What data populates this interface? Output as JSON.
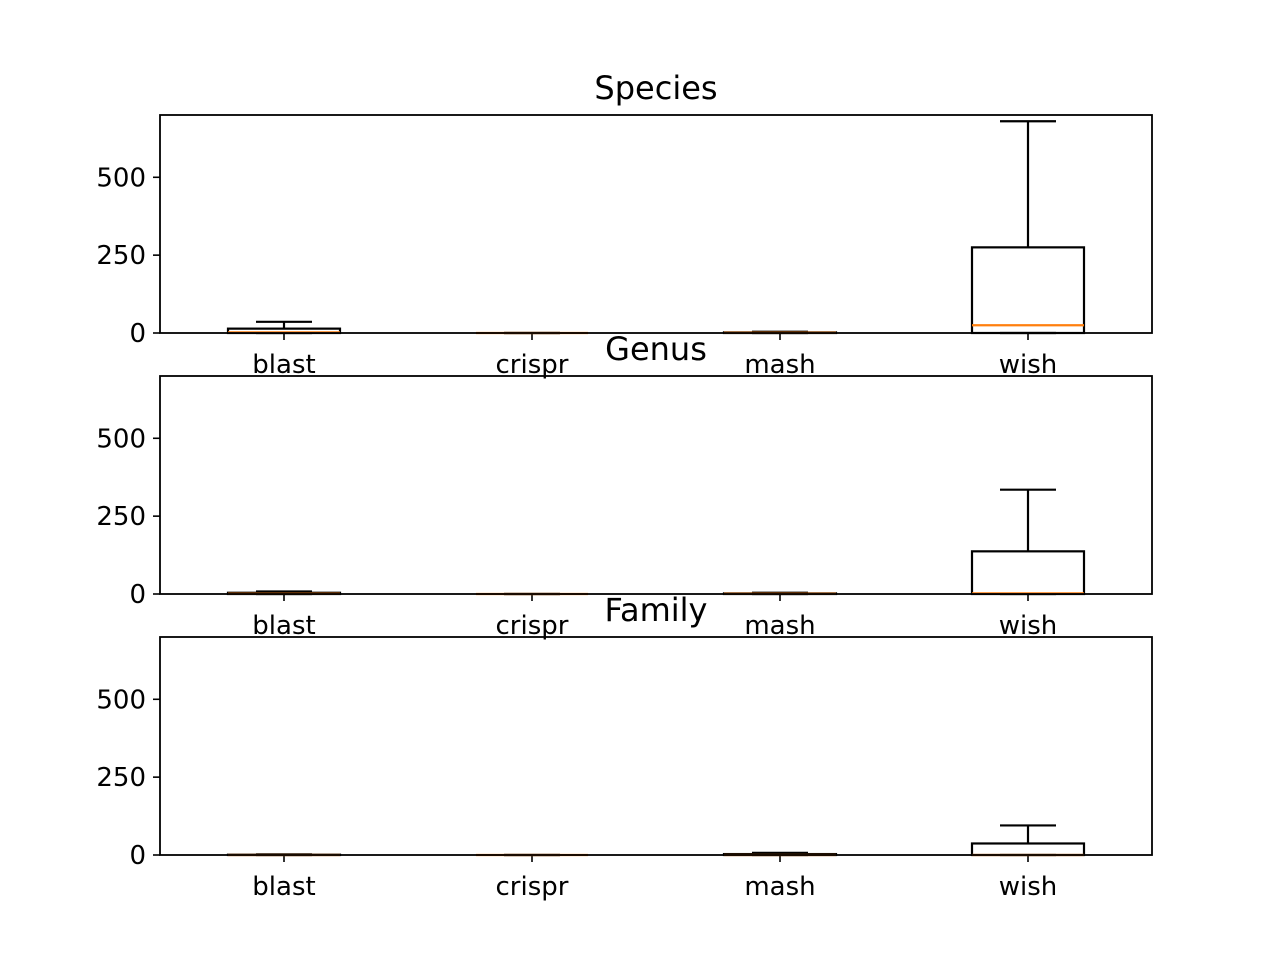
{
  "colors": {
    "box_edge": "#000000",
    "median": "#ff7f0e",
    "background": "#ffffff"
  },
  "chart_data": [
    {
      "type": "box",
      "title": "Species",
      "categories": [
        "blast",
        "crispr",
        "mash",
        "wish"
      ],
      "yticks": [
        0,
        250,
        500
      ],
      "ylim": [
        0,
        700
      ],
      "grid": false,
      "boxes": [
        {
          "category": "blast",
          "whislo": 0,
          "q1": 0,
          "median": 2,
          "q3": 14,
          "whishi": 36
        },
        {
          "category": "crispr",
          "whislo": 0,
          "q1": 0,
          "median": 0,
          "q3": 0,
          "whishi": 0
        },
        {
          "category": "mash",
          "whislo": 0,
          "q1": 0,
          "median": 1,
          "q3": 2,
          "whishi": 4
        },
        {
          "category": "wish",
          "whislo": 0,
          "q1": 0,
          "median": 25,
          "q3": 275,
          "whishi": 680
        }
      ]
    },
    {
      "type": "box",
      "title": "Genus",
      "categories": [
        "blast",
        "crispr",
        "mash",
        "wish"
      ],
      "yticks": [
        0,
        250,
        500
      ],
      "ylim": [
        0,
        700
      ],
      "grid": false,
      "boxes": [
        {
          "category": "blast",
          "whislo": 0,
          "q1": 0,
          "median": 1,
          "q3": 4,
          "whishi": 8
        },
        {
          "category": "crispr",
          "whislo": 0,
          "q1": 0,
          "median": 0,
          "q3": 0,
          "whishi": 0
        },
        {
          "category": "mash",
          "whislo": 0,
          "q1": 0,
          "median": 1,
          "q3": 2,
          "whishi": 4
        },
        {
          "category": "wish",
          "whislo": 0,
          "q1": 0,
          "median": 2,
          "q3": 137,
          "whishi": 335
        }
      ]
    },
    {
      "type": "box",
      "title": "Family",
      "categories": [
        "blast",
        "crispr",
        "mash",
        "wish"
      ],
      "yticks": [
        0,
        250,
        500
      ],
      "ylim": [
        0,
        700
      ],
      "grid": false,
      "boxes": [
        {
          "category": "blast",
          "whislo": 0,
          "q1": 0,
          "median": 0,
          "q3": 1,
          "whishi": 2
        },
        {
          "category": "crispr",
          "whislo": 0,
          "q1": 0,
          "median": 0,
          "q3": 0,
          "whishi": 0
        },
        {
          "category": "mash",
          "whislo": 0,
          "q1": 0,
          "median": 0,
          "q3": 3,
          "whishi": 7
        },
        {
          "category": "wish",
          "whislo": 0,
          "q1": 0,
          "median": 0,
          "q3": 37,
          "whishi": 95
        }
      ]
    }
  ]
}
